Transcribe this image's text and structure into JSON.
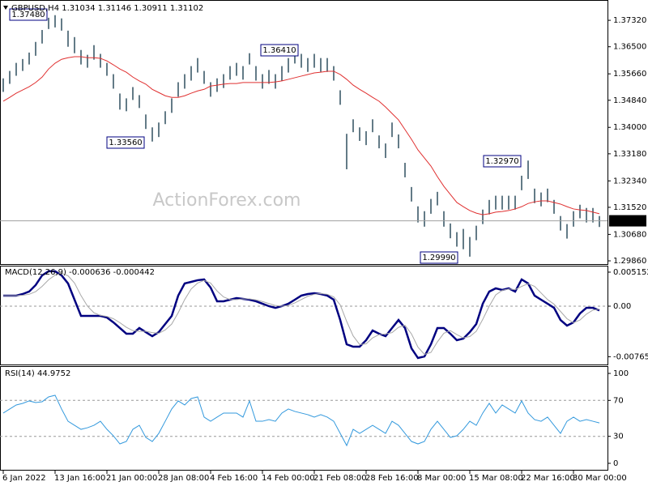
{
  "watermark": "ActionForex.com",
  "chart_data": [
    {
      "type": "hilo",
      "title": "GBPUSD,H4  1.31034 1.31146 1.30911 1.31102",
      "color": "#2f4f5f",
      "ylim": [
        1.2976,
        1.379
      ],
      "yticks": [
        {
          "value": 1.3732,
          "label": "1.37320"
        },
        {
          "value": 1.365,
          "label": "1.36500"
        },
        {
          "value": 1.3566,
          "label": "1.35660"
        },
        {
          "value": 1.3484,
          "label": "1.34840"
        },
        {
          "value": 1.34,
          "label": "1.34000"
        },
        {
          "value": 1.3318,
          "label": "1.33180"
        },
        {
          "value": 1.3234,
          "label": "1.32340"
        },
        {
          "value": 1.3152,
          "label": "1.31520"
        },
        {
          "value": 1.3068,
          "label": "1.30680"
        },
        {
          "value": 1.2986,
          "label": "1.29860"
        }
      ],
      "last_price": {
        "value": 1.31102,
        "label": "1.31102"
      },
      "annotations": [
        "1.37480",
        "1.36410",
        "1.33560",
        "1.32970",
        "1.29990"
      ],
      "high": [
        1.3552,
        1.3575,
        1.36,
        1.3612,
        1.3632,
        1.3665,
        1.3702,
        1.374,
        1.3748,
        1.3738,
        1.37,
        1.368,
        1.364,
        1.3625,
        1.3655,
        1.3628,
        1.36,
        1.3565,
        1.3505,
        1.349,
        1.3525,
        1.35,
        1.344,
        1.34,
        1.3415,
        1.345,
        1.349,
        1.354,
        1.3565,
        1.359,
        1.3615,
        1.3575,
        1.354,
        1.3552,
        1.3565,
        1.359,
        1.36,
        1.359,
        1.363,
        1.359,
        1.3565,
        1.3578,
        1.3565,
        1.359,
        1.3615,
        1.3641,
        1.3628,
        1.3615,
        1.3628,
        1.3615,
        1.3615,
        1.359,
        1.3515,
        1.338,
        1.3425,
        1.34,
        1.3388,
        1.3425,
        1.3375,
        1.335,
        1.3415,
        1.3378,
        1.329,
        1.3215,
        1.3155,
        1.314,
        1.3178,
        1.32,
        1.314,
        1.3102,
        1.3075,
        1.3085,
        1.306,
        1.3095,
        1.3145,
        1.3175,
        1.3188,
        1.3188,
        1.3188,
        1.3188,
        1.325,
        1.3297,
        1.321,
        1.3198,
        1.321,
        1.3175,
        1.3125,
        1.31,
        1.314,
        1.316,
        1.315,
        1.315,
        1.3125
      ],
      "low": [
        1.351,
        1.3535,
        1.356,
        1.3575,
        1.3595,
        1.3622,
        1.366,
        1.3705,
        1.371,
        1.37,
        1.365,
        1.363,
        1.3595,
        1.3585,
        1.361,
        1.3585,
        1.356,
        1.352,
        1.3455,
        1.345,
        1.3485,
        1.346,
        1.3395,
        1.3356,
        1.337,
        1.341,
        1.3445,
        1.3495,
        1.352,
        1.3545,
        1.357,
        1.3535,
        1.3495,
        1.351,
        1.3522,
        1.3548,
        1.356,
        1.3548,
        1.3595,
        1.3545,
        1.352,
        1.3535,
        1.352,
        1.3545,
        1.357,
        1.3598,
        1.3585,
        1.3572,
        1.3585,
        1.3572,
        1.3572,
        1.3545,
        1.347,
        1.327,
        1.3385,
        1.3358,
        1.3345,
        1.3385,
        1.3335,
        1.3305,
        1.337,
        1.3335,
        1.3245,
        1.317,
        1.3105,
        1.3092,
        1.3132,
        1.3158,
        1.3092,
        1.3056,
        1.303,
        1.3022,
        1.2999,
        1.305,
        1.31,
        1.313,
        1.3145,
        1.3145,
        1.3145,
        1.3145,
        1.3205,
        1.324,
        1.3165,
        1.3155,
        1.3168,
        1.3132,
        1.308,
        1.3055,
        1.3092,
        1.3118,
        1.3105,
        1.3105,
        1.3091
      ],
      "ma": {
        "color": "#e03030",
        "values": [
          1.3481,
          1.3493,
          1.3506,
          1.3516,
          1.3526,
          1.3539,
          1.3556,
          1.3581,
          1.3599,
          1.3611,
          1.3616,
          1.3619,
          1.3619,
          1.3616,
          1.3616,
          1.3614,
          1.3606,
          1.3594,
          1.3581,
          1.3571,
          1.3556,
          1.3544,
          1.3534,
          1.3518,
          1.3508,
          1.3498,
          1.3493,
          1.3493,
          1.3498,
          1.3506,
          1.3513,
          1.3518,
          1.3528,
          1.3531,
          1.3534,
          1.3536,
          1.3536,
          1.3539,
          1.3539,
          1.3539,
          1.3539,
          1.3539,
          1.3541,
          1.3544,
          1.3549,
          1.3554,
          1.3559,
          1.3564,
          1.3569,
          1.3571,
          1.3574,
          1.3574,
          1.3564,
          1.3549,
          1.3531,
          1.3518,
          1.3506,
          1.3493,
          1.3481,
          1.3463,
          1.3443,
          1.3423,
          1.3393,
          1.3363,
          1.333,
          1.3305,
          1.328,
          1.3247,
          1.3217,
          1.3192,
          1.3167,
          1.3154,
          1.3142,
          1.3134,
          1.3129,
          1.3132,
          1.3137,
          1.3139,
          1.3142,
          1.3147,
          1.3154,
          1.3164,
          1.3169,
          1.3172,
          1.3172,
          1.3167,
          1.3162,
          1.3154,
          1.3147,
          1.3144,
          1.3142,
          1.3137,
          1.3132
        ]
      }
    },
    {
      "type": "line",
      "title": "MACD(12,26,9) -0.000636 -0.000442",
      "ylim": [
        -0.00883,
        0.00613
      ],
      "yticks": [
        0.005152,
        {
          "value": 0,
          "label": "0.00"
        },
        -0.00765
      ],
      "levels": [
        0
      ],
      "series": [
        {
          "color": "#000080",
          "values": [
            0.0016,
            0.0016,
            0.0016,
            0.00184,
            0.00221,
            0.00319,
            0.00466,
            0.00528,
            0.00528,
            0.00466,
            0.00344,
            0.00098,
            -0.00147,
            -0.00147,
            -0.00147,
            -0.00147,
            -0.00172,
            -0.00245,
            -0.00331,
            -0.00417,
            -0.00417,
            -0.00331,
            -0.00393,
            -0.00454,
            -0.00393,
            -0.0027,
            -0.00147,
            0.0016,
            0.00344,
            0.00368,
            0.00393,
            0.00405,
            0.00282,
            0.00074,
            0.00074,
            0.00098,
            0.00123,
            0.0011,
            0.00098,
            0.00074,
            0.00037,
            0,
            -0.00025,
            0,
            0.00037,
            0.00098,
            0.0016,
            0.00184,
            0.00196,
            0.00184,
            0.0016,
            0.00098,
            -0.00209,
            -0.00577,
            -0.00614,
            -0.00614,
            -0.00515,
            -0.00368,
            -0.00417,
            -0.00454,
            -0.00331,
            -0.00209,
            -0.00331,
            -0.00638,
            -0.00785,
            -0.00761,
            -0.00577,
            -0.00331,
            -0.00331,
            -0.00417,
            -0.00515,
            -0.00491,
            -0.00393,
            -0.0027,
            0.00037,
            0.00221,
            0.0027,
            0.00245,
            0.0027,
            0.00221,
            0.00405,
            0.00344,
            0.0016,
            0.00098,
            0.00037,
            -0.00025,
            -0.00209,
            -0.00294,
            -0.00245,
            -0.0011,
            -0.00025,
            -0.00025,
            -0.00064
          ]
        },
        {
          "color": "#a8a8a8",
          "values": [
            0.0016,
            0.0016,
            0.0016,
            0.00165,
            0.0018,
            0.0022,
            0.003,
            0.004,
            0.0047,
            0.005,
            0.0046,
            0.0035,
            0.0016,
            0,
            -0.001,
            -0.0014,
            -0.00155,
            -0.0019,
            -0.0025,
            -0.0032,
            -0.0037,
            -0.0038,
            -0.0038,
            -0.004,
            -0.0041,
            -0.0036,
            -0.0027,
            -0.001,
            0.001,
            0.0026,
            0.0035,
            0.0039,
            0.0035,
            0.0023,
            0.0014,
            0.001,
            0.001,
            0.0011,
            0.0011,
            0.00095,
            0.0007,
            0.0004,
            0.0001,
            0,
            0.0001,
            0.0005,
            0.001,
            0.0015,
            0.0018,
            0.0019,
            0.0018,
            0.0014,
            0.0002,
            -0.0023,
            -0.0045,
            -0.0058,
            -0.0057,
            -0.0048,
            -0.0043,
            -0.0042,
            -0.004,
            -0.0032,
            -0.0029,
            -0.0042,
            -0.0062,
            -0.0073,
            -0.007,
            -0.0054,
            -0.0041,
            -0.0037,
            -0.0043,
            -0.0048,
            -0.0046,
            -0.0038,
            -0.002,
            0,
            0.0017,
            0.0024,
            0.0026,
            0.0025,
            0.003,
            0.0034,
            0.003,
            0.002,
            0.001,
            0.0003,
            -0.0008,
            -0.0019,
            -0.0025,
            -0.0021,
            -0.0012,
            -0.0006,
            -0.00044
          ]
        }
      ]
    },
    {
      "type": "line",
      "title": "RSI(14) 44.9752",
      "ylim": [
        -7.2,
        107.2
      ],
      "yticks": [
        100,
        70,
        30,
        0
      ],
      "levels": [
        70,
        30
      ],
      "series": [
        {
          "color": "#3399dd",
          "values": [
            55.9,
            60.4,
            64.9,
            66.7,
            69.4,
            67.6,
            68.5,
            73.9,
            75.7,
            60.4,
            46.8,
            42.3,
            37.8,
            39.6,
            42.3,
            46.8,
            37.8,
            30.6,
            21.6,
            24.3,
            37.8,
            42.3,
            28.8,
            24.3,
            33.3,
            46.8,
            60.4,
            69.4,
            64.9,
            72.1,
            73.9,
            51.4,
            46.8,
            51.4,
            55.9,
            55.9,
            55.9,
            51.4,
            69.4,
            46.8,
            46.8,
            48.6,
            46.8,
            55.9,
            60.4,
            57.7,
            55.9,
            54.1,
            51.4,
            54.1,
            51.4,
            46.8,
            33.3,
            19.8,
            37.8,
            33.3,
            37.8,
            42.3,
            37.8,
            33.3,
            46.8,
            42.3,
            33.3,
            24.3,
            21.6,
            24.3,
            37.8,
            46.8,
            37.8,
            28.8,
            30.6,
            37.8,
            46.8,
            42.3,
            55.9,
            66.7,
            55.9,
            64.9,
            60.4,
            55.9,
            69.4,
            55.9,
            48.6,
            46.8,
            51.4,
            42.3,
            33.3,
            46.8,
            51.4,
            46.8,
            48.6,
            46.8,
            44.9752
          ]
        }
      ],
      "categories": [
        "6 Jan 2022",
        null,
        null,
        null,
        null,
        null,
        null,
        null,
        "13 Jan 16:00",
        null,
        null,
        null,
        null,
        null,
        null,
        null,
        "21 Jan 00:00",
        null,
        null,
        null,
        null,
        null,
        null,
        null,
        "28 Jan 08:00",
        null,
        null,
        null,
        null,
        null,
        null,
        null,
        "4 Feb 16:00",
        null,
        null,
        null,
        null,
        null,
        null,
        null,
        "14 Feb 00:00",
        null,
        null,
        null,
        null,
        null,
        null,
        null,
        "21 Feb 08:00",
        null,
        null,
        null,
        null,
        null,
        null,
        null,
        "28 Feb 16:00",
        null,
        null,
        null,
        null,
        null,
        null,
        null,
        "8 Mar 00:00",
        null,
        null,
        null,
        null,
        null,
        null,
        null,
        "15 Mar 08:00",
        null,
        null,
        null,
        null,
        null,
        null,
        null,
        "22 Mar 16:00",
        null,
        null,
        null,
        null,
        null,
        null,
        null,
        "30 Mar 00:00",
        null,
        null,
        null,
        null
      ]
    }
  ]
}
